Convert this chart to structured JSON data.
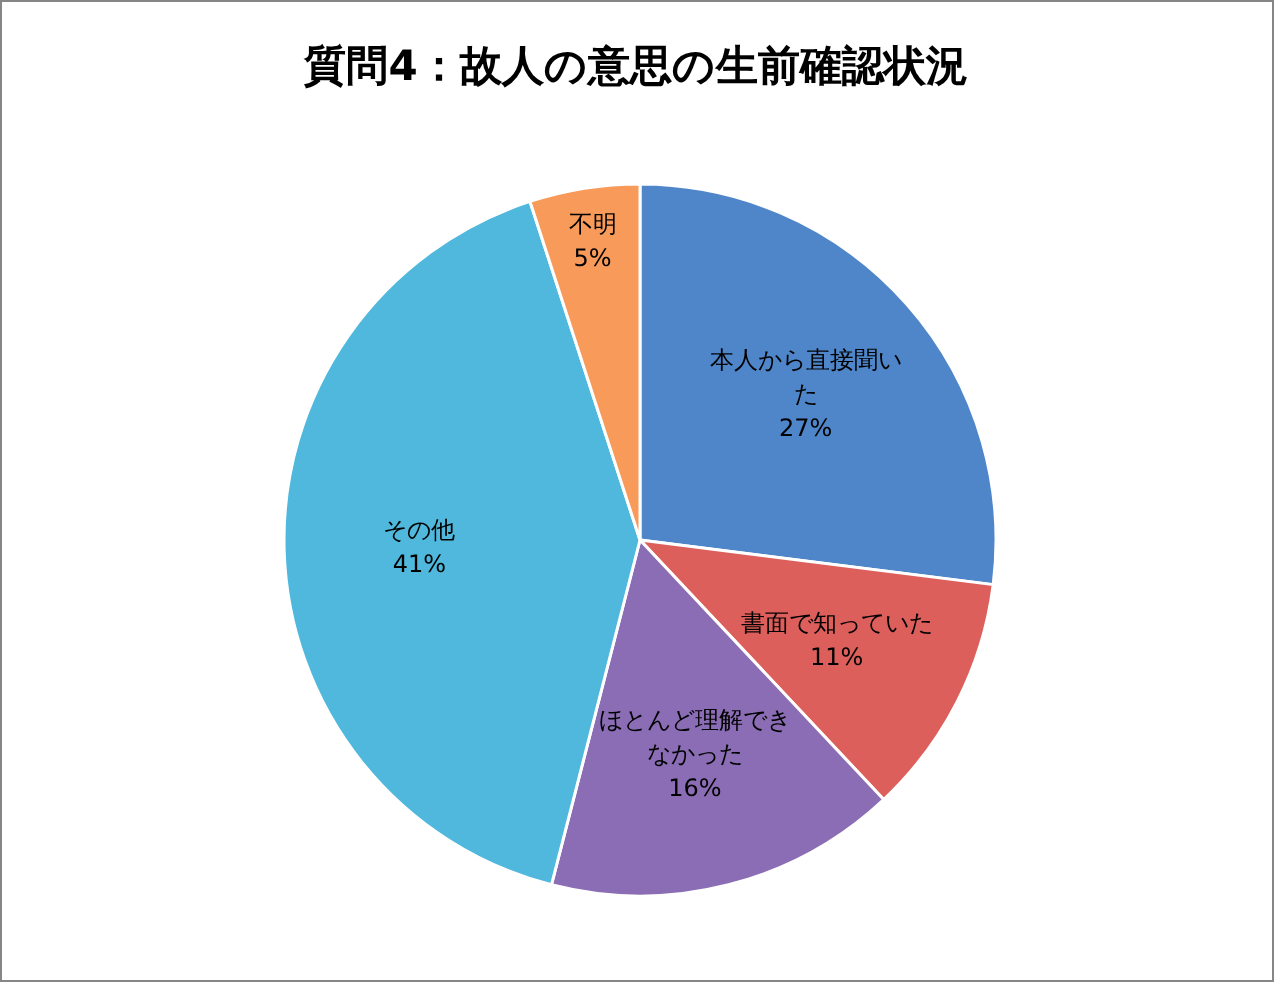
{
  "chart_data": {
    "type": "pie",
    "title": "質問4：故人の意思の生前確認状況",
    "categories": [
      "本人から直接聞いた",
      "書面で知っていた",
      "ほとんど理解できなかった",
      "その他",
      "不明"
    ],
    "values": [
      27,
      11,
      16,
      41,
      5
    ],
    "value_labels": [
      "27%",
      "11%",
      "16%",
      "41%",
      "5%"
    ],
    "colors": [
      "#4f86c9",
      "#dd5f5b",
      "#8a6db4",
      "#4fb8dc",
      "#f79a5a"
    ],
    "legend": false
  }
}
